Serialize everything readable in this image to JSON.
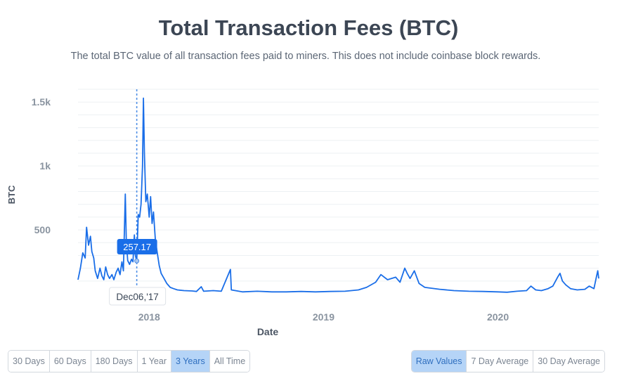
{
  "header": {
    "title": "Total Transaction Fees (BTC)",
    "subtitle": "The total BTC value of all transaction fees paid to miners. This does not include coinbase block rewards."
  },
  "chart_data": {
    "type": "line",
    "title": "Total Transaction Fees (BTC)",
    "xlabel": "Date",
    "ylabel": "BTC",
    "ylim": [
      0,
      1600
    ],
    "y_ticks": [
      {
        "value": 500,
        "label": "500"
      },
      {
        "value": 1000,
        "label": "1k"
      },
      {
        "value": 1500,
        "label": "1.5k"
      }
    ],
    "x_ticks": [
      {
        "value": "2018-01-01",
        "label": "2018"
      },
      {
        "value": "2019-01-01",
        "label": "2019"
      },
      {
        "value": "2020-01-01",
        "label": "2020"
      }
    ],
    "x_range": [
      "2017-08-05",
      "2020-07-30"
    ],
    "grid": true,
    "series_color": "#1a6ee8",
    "tooltip": {
      "date": "2017-12-06",
      "date_label": "Dec06,'17",
      "value_label": "257.17",
      "value": 257.17
    },
    "series": [
      {
        "points": [
          [
            "2017-08-05",
            110
          ],
          [
            "2017-08-10",
            200
          ],
          [
            "2017-08-15",
            320
          ],
          [
            "2017-08-20",
            280
          ],
          [
            "2017-08-23",
            520
          ],
          [
            "2017-08-27",
            380
          ],
          [
            "2017-08-31",
            450
          ],
          [
            "2017-09-03",
            330
          ],
          [
            "2017-09-07",
            280
          ],
          [
            "2017-09-10",
            180
          ],
          [
            "2017-09-15",
            120
          ],
          [
            "2017-09-20",
            200
          ],
          [
            "2017-09-24",
            140
          ],
          [
            "2017-09-28",
            110
          ],
          [
            "2017-10-02",
            210
          ],
          [
            "2017-10-06",
            150
          ],
          [
            "2017-10-10",
            120
          ],
          [
            "2017-10-15",
            150
          ],
          [
            "2017-10-19",
            110
          ],
          [
            "2017-10-24",
            170
          ],
          [
            "2017-10-28",
            200
          ],
          [
            "2017-11-01",
            150
          ],
          [
            "2017-11-05",
            250
          ],
          [
            "2017-11-08",
            180
          ],
          [
            "2017-11-12",
            780
          ],
          [
            "2017-11-14",
            420
          ],
          [
            "2017-11-17",
            260
          ],
          [
            "2017-11-21",
            230
          ],
          [
            "2017-11-25",
            270
          ],
          [
            "2017-11-28",
            250
          ],
          [
            "2017-12-01",
            460
          ],
          [
            "2017-12-03",
            300
          ],
          [
            "2017-12-06",
            257
          ],
          [
            "2017-12-09",
            620
          ],
          [
            "2017-12-12",
            600
          ],
          [
            "2017-12-15",
            700
          ],
          [
            "2017-12-18",
            1000
          ],
          [
            "2017-12-20",
            1530
          ],
          [
            "2017-12-22",
            1100
          ],
          [
            "2017-12-25",
            720
          ],
          [
            "2017-12-28",
            780
          ],
          [
            "2018-01-01",
            600
          ],
          [
            "2018-01-04",
            760
          ],
          [
            "2018-01-07",
            550
          ],
          [
            "2018-01-10",
            640
          ],
          [
            "2018-01-14",
            420
          ],
          [
            "2018-01-18",
            320
          ],
          [
            "2018-01-22",
            220
          ],
          [
            "2018-01-26",
            160
          ],
          [
            "2018-02-01",
            120
          ],
          [
            "2018-02-07",
            80
          ],
          [
            "2018-02-14",
            50
          ],
          [
            "2018-02-21",
            40
          ],
          [
            "2018-03-01",
            30
          ],
          [
            "2018-03-15",
            25
          ],
          [
            "2018-04-01",
            22
          ],
          [
            "2018-04-10",
            18
          ],
          [
            "2018-04-20",
            55
          ],
          [
            "2018-04-25",
            20
          ],
          [
            "2018-05-15",
            25
          ],
          [
            "2018-06-01",
            20
          ],
          [
            "2018-06-20",
            190
          ],
          [
            "2018-06-22",
            30
          ],
          [
            "2018-07-15",
            15
          ],
          [
            "2018-08-15",
            20
          ],
          [
            "2018-09-15",
            15
          ],
          [
            "2018-10-15",
            15
          ],
          [
            "2018-11-15",
            18
          ],
          [
            "2018-12-15",
            15
          ],
          [
            "2019-01-15",
            18
          ],
          [
            "2019-02-15",
            20
          ],
          [
            "2019-03-15",
            30
          ],
          [
            "2019-04-01",
            50
          ],
          [
            "2019-04-20",
            90
          ],
          [
            "2019-05-01",
            150
          ],
          [
            "2019-05-15",
            110
          ],
          [
            "2019-06-01",
            130
          ],
          [
            "2019-06-10",
            90
          ],
          [
            "2019-06-20",
            200
          ],
          [
            "2019-06-25",
            160
          ],
          [
            "2019-07-01",
            120
          ],
          [
            "2019-07-10",
            180
          ],
          [
            "2019-07-20",
            80
          ],
          [
            "2019-08-01",
            50
          ],
          [
            "2019-09-01",
            35
          ],
          [
            "2019-10-01",
            25
          ],
          [
            "2019-11-01",
            20
          ],
          [
            "2019-12-01",
            18
          ],
          [
            "2020-01-01",
            15
          ],
          [
            "2020-01-20",
            12
          ],
          [
            "2020-02-10",
            20
          ],
          [
            "2020-03-01",
            25
          ],
          [
            "2020-03-10",
            60
          ],
          [
            "2020-03-20",
            30
          ],
          [
            "2020-04-01",
            25
          ],
          [
            "2020-04-15",
            40
          ],
          [
            "2020-04-25",
            60
          ],
          [
            "2020-05-05",
            130
          ],
          [
            "2020-05-10",
            160
          ],
          [
            "2020-05-15",
            100
          ],
          [
            "2020-05-22",
            70
          ],
          [
            "2020-06-01",
            40
          ],
          [
            "2020-06-15",
            30
          ],
          [
            "2020-07-01",
            35
          ],
          [
            "2020-07-10",
            60
          ],
          [
            "2020-07-20",
            40
          ],
          [
            "2020-07-25",
            130
          ],
          [
            "2020-07-28",
            180
          ],
          [
            "2020-07-30",
            120
          ]
        ]
      }
    ]
  },
  "controls": {
    "ranges": [
      {
        "label": "30 Days",
        "active": false
      },
      {
        "label": "60 Days",
        "active": false
      },
      {
        "label": "180 Days",
        "active": false
      },
      {
        "label": "1 Year",
        "active": false
      },
      {
        "label": "3 Years",
        "active": true
      },
      {
        "label": "All Time",
        "active": false
      }
    ],
    "modes": [
      {
        "label": "Raw Values",
        "active": true
      },
      {
        "label": "7 Day Average",
        "active": false
      },
      {
        "label": "30 Day Average",
        "active": false
      }
    ]
  }
}
